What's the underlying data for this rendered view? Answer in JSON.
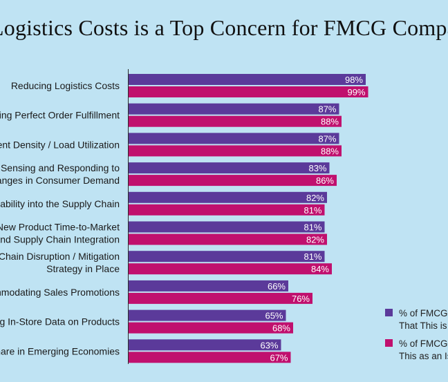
{
  "chart_data": {
    "type": "bar",
    "orientation": "horizontal",
    "title": "Logistics Costs is a Top Concern for FMCG Compa",
    "categories": [
      "Reducing Logistics Costs",
      "ring Perfect Order Fulfillment",
      "ent Density / Load Utilization",
      "y Sensing and Responding to\nhanges in Consumer Demand",
      "nability into the Supply Chain",
      "New Product Time-to-Market\nand Supply Chain Integration",
      "Chain Disruption / Mitigation\nStrategy in Place",
      "mmodating Sales Promotions",
      "g In-Store Data on Products",
      "hare in Emerging Economies"
    ],
    "series": [
      {
        "name": "% of FMCG\nThat This is",
        "color": "#5b3a9a",
        "values": [
          98,
          87,
          87,
          83,
          82,
          81,
          81,
          66,
          65,
          63
        ],
        "labels": [
          "98%",
          "87%",
          "87%",
          "83%",
          "82%",
          "81%",
          "81%",
          "66%",
          "65%",
          "63%"
        ]
      },
      {
        "name": "% of FMCG\nThis as an Is",
        "color": "#c0106e",
        "values": [
          99,
          88,
          88,
          86,
          81,
          82,
          84,
          76,
          68,
          67
        ],
        "labels": [
          "99%",
          "88%",
          "88%",
          "86%",
          "81%",
          "82%",
          "84%",
          "76%",
          "68%",
          "67%"
        ]
      }
    ],
    "xlim": [
      0,
      100
    ],
    "grid": false,
    "legend_position": "bottom-right"
  }
}
